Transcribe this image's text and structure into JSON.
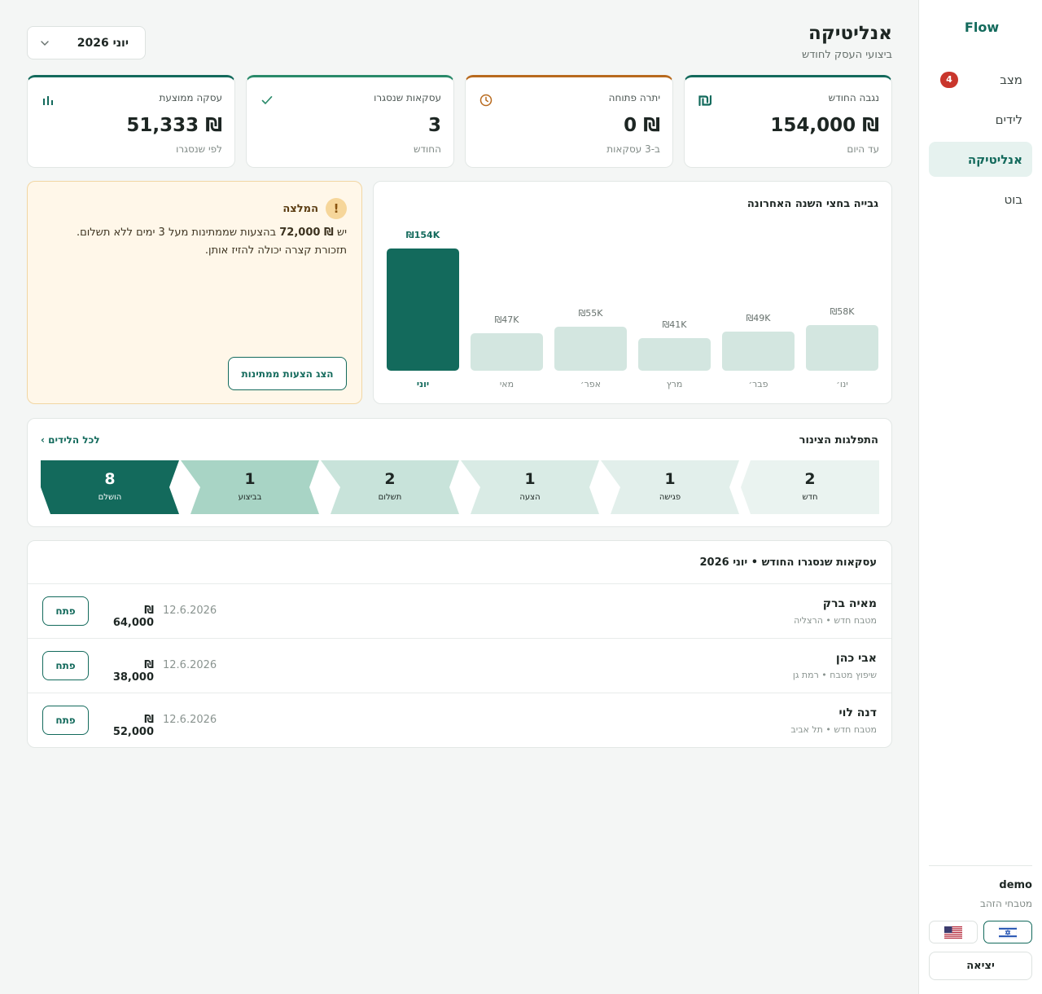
{
  "sidebar": {
    "brand": "Flow",
    "items": [
      {
        "label": "מצב",
        "badge": "4"
      },
      {
        "label": "לידים"
      },
      {
        "label": "אנליטיקה",
        "active": true
      },
      {
        "label": "בוט"
      }
    ],
    "user": {
      "name": "demo",
      "org": "מטבחי הזהב"
    },
    "languages": [
      {
        "name": "he",
        "icon": "israel-flag-icon",
        "active": true
      },
      {
        "name": "en",
        "icon": "us-flag-icon",
        "active": false
      }
    ],
    "logout_label": "יציאה"
  },
  "header": {
    "title": "אנליטיקה",
    "subtitle": "ביצועי העסק לחודש",
    "month_select": "יוני 2026"
  },
  "stats": [
    {
      "label": "נגבה החודש",
      "value": "₪ 154,000",
      "sub": "עד היום",
      "icon": "shekel-icon",
      "accent": "#136a5c"
    },
    {
      "label": "יתרה פתוחה",
      "value": "₪ 0",
      "sub": "ב-3 עסקאות",
      "icon": "clock-icon",
      "accent": "#b86a1e"
    },
    {
      "label": "עסקאות שנסגרו",
      "value": "3",
      "sub": "החודש",
      "icon": "check-icon",
      "accent": "#2a8a6a"
    },
    {
      "label": "עסקה ממוצעת",
      "value": "₪ 51,333",
      "sub": "לפי שנסגרו",
      "icon": "bar-chart-icon",
      "accent": "#136a5c"
    }
  ],
  "recommendation": {
    "title": "המלצה",
    "icon": "warning-icon",
    "text_prefix": "יש",
    "amount": "₪ 72,000",
    "text_suffix": "בהצעות שממתינות מעל 3 ימים ללא תשלום.",
    "text_line2": "תזכורת קצרה יכולה להזיז אותן.",
    "button_label": "הצג הצעות ממתינות"
  },
  "chart_title": "גבייה בחצי השנה האחרונה",
  "chart_data": {
    "type": "bar",
    "categories": [
      "ינו׳",
      "פבר׳",
      "מרץ",
      "אפר׳",
      "מאי",
      "יוני"
    ],
    "values": [
      58,
      49,
      41,
      55,
      47,
      154
    ],
    "value_labels": [
      "₪58K",
      "₪49K",
      "₪41K",
      "₪55K",
      "₪47K",
      "₪154K"
    ],
    "unit": "K ₪",
    "highlight_index": 5,
    "colors": {
      "highlight": "#136a5c",
      "normal": "#d3e6e0"
    },
    "ylim": [
      0,
      154
    ],
    "grid": false,
    "legend": "none"
  },
  "pipeline": {
    "title": "התפלגות הצינור",
    "link_label": "לכל הלידים ›",
    "stages": [
      {
        "label": "חדש",
        "count": "2",
        "color": "#eaf3f0",
        "text_color": "#1d2623"
      },
      {
        "label": "פגישה",
        "count": "1",
        "color": "#e2efeb",
        "text_color": "#1d2623"
      },
      {
        "label": "הצעה",
        "count": "1",
        "color": "#d9ebe5",
        "text_color": "#1d2623"
      },
      {
        "label": "תשלום",
        "count": "2",
        "color": "#c8e3da",
        "text_color": "#1d2623"
      },
      {
        "label": "בביצוע",
        "count": "1",
        "color": "#a8d4c5",
        "text_color": "#1d2623"
      },
      {
        "label": "הושלם",
        "count": "8",
        "color": "#136a5c",
        "text_color": "#ffffff"
      }
    ]
  },
  "deals": {
    "title": "עסקאות שנסגרו החודש • יוני 2026",
    "open_label": "פתח",
    "rows": [
      {
        "name": "מאיה ברק",
        "meta": "מטבח חדש • הרצליה",
        "date": "12.6.2026",
        "amount": "₪ 64,000"
      },
      {
        "name": "אבי כהן",
        "meta": "שיפוץ מטבח • רמת גן",
        "date": "12.6.2026",
        "amount": "₪ 38,000"
      },
      {
        "name": "דנה לוי",
        "meta": "מטבח חדש • תל אביב",
        "date": "12.6.2026",
        "amount": "₪ 52,000"
      }
    ]
  }
}
